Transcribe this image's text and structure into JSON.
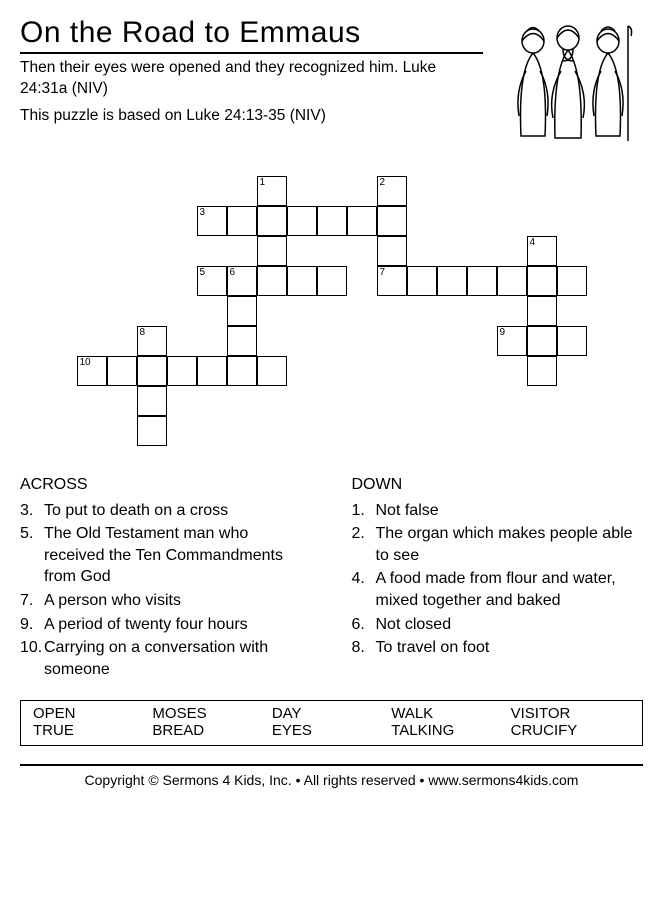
{
  "title": "On the Road to Emmaus",
  "subtitle1": "Then their eyes were opened and they recognized him. Luke 24:31a (NIV)",
  "subtitle2": "This puzzle is based on Luke 24:13-35 (NIV)",
  "crossword": {
    "cell_size": 30,
    "cols": 17,
    "rows": 9,
    "cells": [
      {
        "r": 0,
        "c": 6,
        "num": "1"
      },
      {
        "r": 0,
        "c": 10,
        "num": "2"
      },
      {
        "r": 1,
        "c": 4,
        "num": "3"
      },
      {
        "r": 1,
        "c": 5
      },
      {
        "r": 1,
        "c": 6
      },
      {
        "r": 1,
        "c": 7
      },
      {
        "r": 1,
        "c": 8
      },
      {
        "r": 1,
        "c": 9
      },
      {
        "r": 1,
        "c": 10
      },
      {
        "r": 2,
        "c": 6
      },
      {
        "r": 2,
        "c": 10
      },
      {
        "r": 2,
        "c": 15,
        "num": "4"
      },
      {
        "r": 3,
        "c": 4,
        "num": "5"
      },
      {
        "r": 3,
        "c": 5,
        "num": "6"
      },
      {
        "r": 3,
        "c": 6
      },
      {
        "r": 3,
        "c": 7
      },
      {
        "r": 3,
        "c": 8
      },
      {
        "r": 3,
        "c": 10,
        "num": "7"
      },
      {
        "r": 3,
        "c": 11
      },
      {
        "r": 3,
        "c": 12
      },
      {
        "r": 3,
        "c": 13
      },
      {
        "r": 3,
        "c": 14
      },
      {
        "r": 3,
        "c": 15
      },
      {
        "r": 3,
        "c": 16
      },
      {
        "r": 4,
        "c": 5
      },
      {
        "r": 4,
        "c": 15
      },
      {
        "r": 5,
        "c": 2,
        "num": "8"
      },
      {
        "r": 5,
        "c": 5
      },
      {
        "r": 5,
        "c": 14,
        "num": "9"
      },
      {
        "r": 5,
        "c": 15
      },
      {
        "r": 5,
        "c": 16
      },
      {
        "r": 6,
        "c": 0,
        "num": "10"
      },
      {
        "r": 6,
        "c": 1
      },
      {
        "r": 6,
        "c": 2
      },
      {
        "r": 6,
        "c": 3
      },
      {
        "r": 6,
        "c": 4
      },
      {
        "r": 6,
        "c": 5
      },
      {
        "r": 6,
        "c": 6
      },
      {
        "r": 6,
        "c": 15
      },
      {
        "r": 7,
        "c": 2
      },
      {
        "r": 8,
        "c": 2
      }
    ]
  },
  "clues": {
    "across_label": "ACROSS",
    "down_label": "DOWN",
    "across": [
      {
        "n": "3.",
        "text": "To put to death on a cross"
      },
      {
        "n": "5.",
        "text": "The Old Testament man who received the Ten Commandments from God"
      },
      {
        "n": "7.",
        "text": "A person who visits"
      },
      {
        "n": "9.",
        "text": "A period of twenty four hours"
      },
      {
        "n": "10.",
        "text": "Carrying on a conversation with someone"
      }
    ],
    "down": [
      {
        "n": "1.",
        "text": "Not false"
      },
      {
        "n": "2.",
        "text": "The organ which makes people able to see"
      },
      {
        "n": "4.",
        "text": "A food made from flour and water, mixed together and baked"
      },
      {
        "n": "6.",
        "text": "Not closed"
      },
      {
        "n": "8.",
        "text": "To travel on foot"
      }
    ]
  },
  "wordbank": [
    [
      "OPEN",
      "MOSES",
      "DAY",
      "WALK",
      "VISITOR"
    ],
    [
      "TRUE",
      "BREAD",
      "EYES",
      "TALKING",
      "CRUCIFY"
    ]
  ],
  "footer": "Copyright © Sermons 4 Kids, Inc. • All rights reserved • www.sermons4kids.com"
}
